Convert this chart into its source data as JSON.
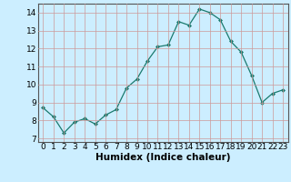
{
  "x": [
    0,
    1,
    2,
    3,
    4,
    5,
    6,
    7,
    8,
    9,
    10,
    11,
    12,
    13,
    14,
    15,
    16,
    17,
    18,
    19,
    20,
    21,
    22,
    23
  ],
  "y": [
    8.7,
    8.2,
    7.3,
    7.9,
    8.1,
    7.8,
    8.3,
    8.6,
    9.8,
    10.3,
    11.3,
    12.1,
    12.2,
    13.5,
    13.3,
    14.2,
    14.0,
    13.6,
    12.4,
    11.8,
    10.5,
    9.0,
    9.5,
    9.7
  ],
  "xlabel": "Humidex (Indice chaleur)",
  "xlim": [
    -0.5,
    23.5
  ],
  "ylim": [
    6.8,
    14.5
  ],
  "yticks": [
    7,
    8,
    9,
    10,
    11,
    12,
    13,
    14
  ],
  "xticks": [
    0,
    1,
    2,
    3,
    4,
    5,
    6,
    7,
    8,
    9,
    10,
    11,
    12,
    13,
    14,
    15,
    16,
    17,
    18,
    19,
    20,
    21,
    22,
    23
  ],
  "line_color": "#1a7a6e",
  "marker": "D",
  "marker_size": 2.0,
  "bg_color": "#cceeff",
  "grid_color": "#cc9999",
  "xlabel_fontsize": 7.5,
  "tick_fontsize": 6.5
}
